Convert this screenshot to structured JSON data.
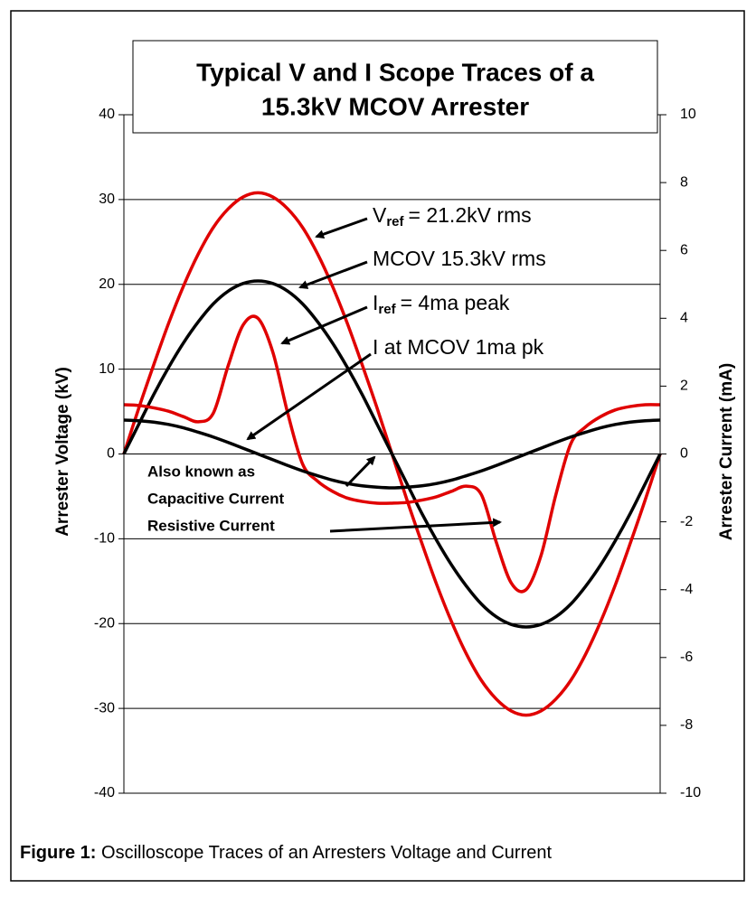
{
  "chart_data": {
    "type": "line",
    "title": [
      "Typical V and I Scope Traces of a",
      "15.3kV MCOV Arrester"
    ],
    "ylabel": "Arrester  Voltage (kV)",
    "y2label": "Arrester  Current (mA)",
    "categories": [
      null,
      null,
      null,
      null,
      null,
      null,
      null,
      null,
      null,
      null,
      null,
      null,
      null,
      null,
      null,
      null,
      null,
      null,
      null,
      null,
      null,
      null,
      null,
      null,
      null,
      null,
      null,
      null,
      null,
      null,
      null,
      null,
      null,
      null,
      null,
      null,
      null
    ],
    "ylim": [
      -40,
      40
    ],
    "yticks": [
      -40,
      -30,
      -20,
      -10,
      0,
      10,
      20,
      30,
      40
    ],
    "y2lim": [
      -10,
      10
    ],
    "y2ticks": [
      -10,
      -8,
      -6,
      -4,
      -2,
      0,
      2,
      4,
      6,
      8,
      10
    ],
    "grid": true,
    "series": [
      {
        "color": "#e00000",
        "values": [
          0,
          5.4,
          10.5,
          15.4,
          19.8,
          23.6,
          26.7,
          28.9,
          30.3,
          30.8,
          30.3,
          28.9,
          26.7,
          23.6,
          19.8,
          15.4,
          10.5,
          5.4,
          0,
          -5.4,
          -10.5,
          -15.4,
          -19.8,
          -23.6,
          -26.7,
          -28.9,
          -30.3,
          -30.8,
          -30.3,
          -28.9,
          -26.7,
          -23.6,
          -19.8,
          -15.4,
          -10.5,
          -5.4,
          0
        ]
      },
      {
        "color": "#000000",
        "values": [
          0,
          3.5,
          7.0,
          10.2,
          13.1,
          15.6,
          17.7,
          19.2,
          20.1,
          20.4,
          20.1,
          19.2,
          17.7,
          15.6,
          13.1,
          10.2,
          7.0,
          3.5,
          0,
          -3.5,
          -7.0,
          -10.2,
          -13.1,
          -15.6,
          -17.7,
          -19.2,
          -20.1,
          -20.4,
          -20.1,
          -19.2,
          -17.7,
          -15.6,
          -13.1,
          -10.2,
          -7.0,
          -3.5,
          0
        ]
      },
      {
        "color": "#e00000",
        "axis": "y2",
        "values": [
          1.45,
          1.43,
          1.36,
          1.26,
          1.1,
          0.95,
          1.2,
          2.6,
          3.8,
          4.0,
          3.0,
          1.2,
          -0.3,
          -0.8,
          -1.1,
          -1.3,
          -1.4,
          -1.45,
          -1.45,
          -1.43,
          -1.36,
          -1.26,
          -1.1,
          -0.95,
          -1.2,
          -2.6,
          -3.8,
          -4.0,
          -3.0,
          -1.2,
          0.3,
          0.8,
          1.1,
          1.3,
          1.4,
          1.45,
          1.45
        ]
      },
      {
        "color": "#000000",
        "axis": "y2",
        "values": [
          1,
          0.98,
          0.94,
          0.87,
          0.77,
          0.64,
          0.5,
          0.34,
          0.17,
          0,
          -0.17,
          -0.34,
          -0.5,
          -0.64,
          -0.77,
          -0.87,
          -0.94,
          -0.98,
          -1,
          -0.98,
          -0.94,
          -0.87,
          -0.77,
          -0.64,
          -0.5,
          -0.34,
          -0.17,
          0,
          0.17,
          0.34,
          0.5,
          0.64,
          0.77,
          0.87,
          0.94,
          0.98,
          1
        ]
      }
    ],
    "annotations": [
      {
        "main": "V",
        "sub": "ref",
        "tail": "= 21.2kV rms"
      },
      {
        "main": "MCOV 15.3kV rms"
      },
      {
        "main": "I",
        "sub": "ref",
        "tail": "= 4ma peak"
      },
      {
        "main": "I at MCOV 1ma pk"
      }
    ],
    "notes": [
      "Also known as",
      "Capacitive Current",
      "Resistive Current"
    ]
  },
  "caption": {
    "label": "Figure 1:",
    "text": " Oscilloscope Traces of an Arresters Voltage and Current"
  }
}
